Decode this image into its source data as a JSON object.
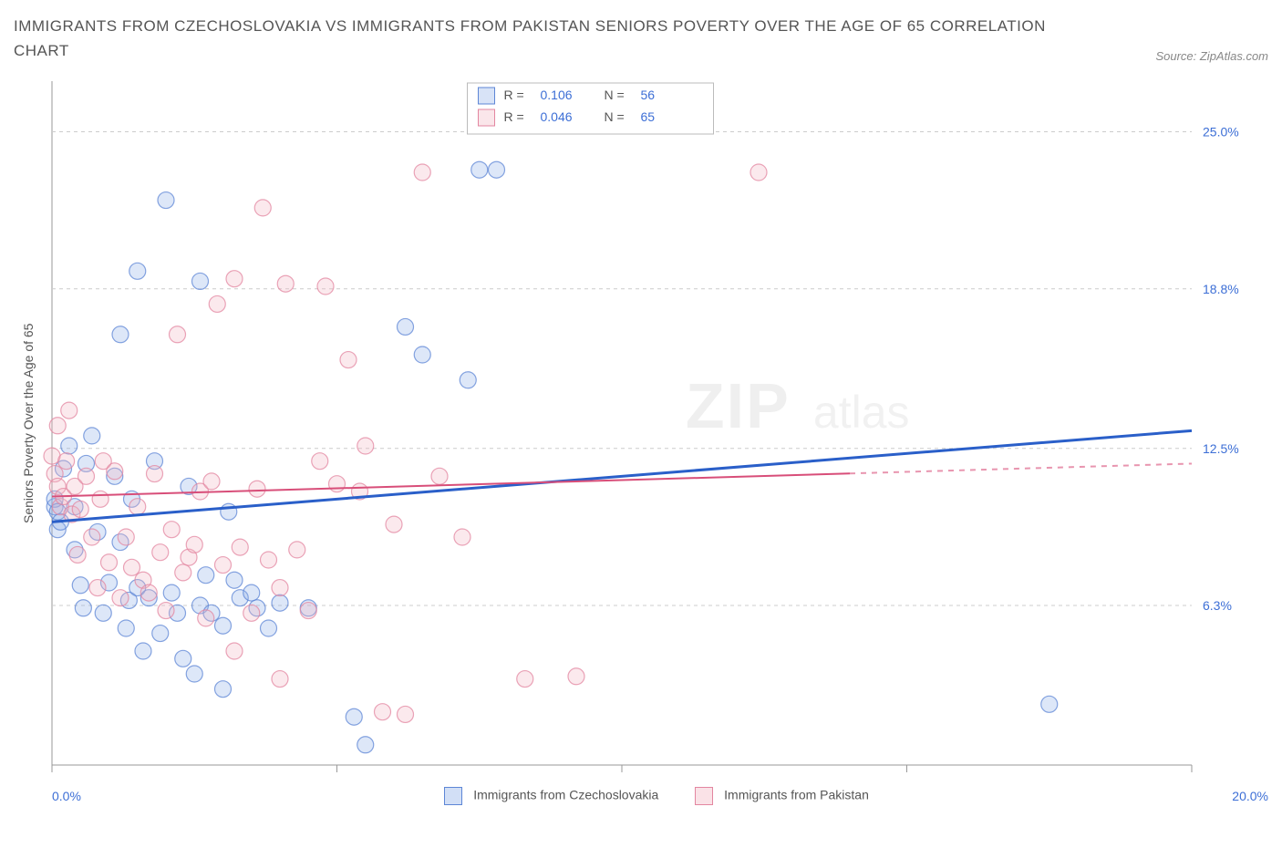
{
  "title": "IMMIGRANTS FROM CZECHOSLOVAKIA VS IMMIGRANTS FROM PAKISTAN SENIORS POVERTY OVER THE AGE OF 65 CORRELATION CHART",
  "source": "Source: ZipAtlas.com",
  "ylabel": "Seniors Poverty Over the Age of 65",
  "watermark_a": "ZIP",
  "watermark_b": "atlas",
  "chart": {
    "type": "scatter",
    "xlim": [
      0,
      20
    ],
    "ylim": [
      0,
      27
    ],
    "xticks": [
      0,
      5,
      10,
      15,
      20
    ],
    "xtick_labels_shown": {
      "first": "0.0%",
      "last": "20.0%"
    },
    "yticks": [
      6.3,
      12.5,
      18.8,
      25.0
    ],
    "ytick_labels": [
      "6.3%",
      "12.5%",
      "18.8%",
      "25.0%"
    ],
    "grid_color": "#cccccc",
    "background": "#ffffff",
    "marker_radius": 9,
    "marker_fill_opacity": 0.3,
    "marker_stroke_opacity": 0.75,
    "series": [
      {
        "name": "Immigrants from Czechoslovakia",
        "color_fill": "#8faee8",
        "color_stroke": "#5d86d6",
        "R": 0.106,
        "N": 56,
        "trend": {
          "x0": 0,
          "y0": 9.6,
          "x1": 20,
          "y1": 13.2,
          "color": "#2a5fc9",
          "width": 3,
          "solid_until": 20
        },
        "points": [
          [
            0.05,
            10.2
          ],
          [
            0.05,
            10.5
          ],
          [
            0.1,
            10.0
          ],
          [
            0.1,
            9.3
          ],
          [
            0.15,
            9.6
          ],
          [
            0.2,
            11.7
          ],
          [
            0.3,
            12.6
          ],
          [
            0.4,
            8.5
          ],
          [
            0.4,
            10.2
          ],
          [
            0.5,
            7.1
          ],
          [
            0.55,
            6.2
          ],
          [
            0.6,
            11.9
          ],
          [
            0.7,
            13.0
          ],
          [
            0.8,
            9.2
          ],
          [
            0.9,
            6.0
          ],
          [
            1.0,
            7.2
          ],
          [
            1.1,
            11.4
          ],
          [
            1.2,
            8.8
          ],
          [
            1.3,
            5.4
          ],
          [
            1.35,
            6.5
          ],
          [
            1.4,
            10.5
          ],
          [
            1.5,
            7.0
          ],
          [
            1.6,
            4.5
          ],
          [
            1.7,
            6.6
          ],
          [
            1.8,
            12.0
          ],
          [
            1.9,
            5.2
          ],
          [
            2.0,
            22.3
          ],
          [
            2.1,
            6.8
          ],
          [
            2.2,
            6.0
          ],
          [
            2.3,
            4.2
          ],
          [
            2.4,
            11.0
          ],
          [
            2.5,
            3.6
          ],
          [
            2.6,
            6.3
          ],
          [
            2.7,
            7.5
          ],
          [
            2.8,
            6.0
          ],
          [
            3.0,
            5.5
          ],
          [
            3.1,
            10.0
          ],
          [
            3.2,
            7.3
          ],
          [
            3.3,
            6.6
          ],
          [
            3.5,
            6.8
          ],
          [
            3.6,
            6.2
          ],
          [
            3.8,
            5.4
          ],
          [
            4.0,
            6.4
          ],
          [
            4.5,
            6.2
          ],
          [
            5.3,
            1.9
          ],
          [
            5.5,
            0.8
          ],
          [
            6.2,
            17.3
          ],
          [
            6.5,
            16.2
          ],
          [
            7.3,
            15.2
          ],
          [
            7.5,
            23.5
          ],
          [
            7.8,
            23.5
          ],
          [
            2.6,
            19.1
          ],
          [
            1.5,
            19.5
          ],
          [
            1.2,
            17.0
          ],
          [
            17.5,
            2.4
          ],
          [
            3.0,
            3.0
          ]
        ]
      },
      {
        "name": "Immigrants from Pakistan",
        "color_fill": "#f2b6c4",
        "color_stroke": "#e386a0",
        "R": 0.046,
        "N": 65,
        "trend": {
          "x0": 0,
          "y0": 10.6,
          "x1": 20,
          "y1": 11.9,
          "color": "#d84e79",
          "width": 2,
          "solid_until": 14,
          "dash_after": true
        },
        "points": [
          [
            0.0,
            12.2
          ],
          [
            0.05,
            11.5
          ],
          [
            0.1,
            11.0
          ],
          [
            0.1,
            13.4
          ],
          [
            0.15,
            10.2
          ],
          [
            0.2,
            10.6
          ],
          [
            0.25,
            12.0
          ],
          [
            0.3,
            14.0
          ],
          [
            0.35,
            9.9
          ],
          [
            0.4,
            11.0
          ],
          [
            0.45,
            8.3
          ],
          [
            0.5,
            10.1
          ],
          [
            0.6,
            11.4
          ],
          [
            0.7,
            9.0
          ],
          [
            0.8,
            7.0
          ],
          [
            0.85,
            10.5
          ],
          [
            0.9,
            12.0
          ],
          [
            1.0,
            8.0
          ],
          [
            1.1,
            11.6
          ],
          [
            1.2,
            6.6
          ],
          [
            1.3,
            9.0
          ],
          [
            1.4,
            7.8
          ],
          [
            1.5,
            10.2
          ],
          [
            1.6,
            7.3
          ],
          [
            1.7,
            6.8
          ],
          [
            1.8,
            11.5
          ],
          [
            1.9,
            8.4
          ],
          [
            2.0,
            6.1
          ],
          [
            2.1,
            9.3
          ],
          [
            2.2,
            17.0
          ],
          [
            2.3,
            7.6
          ],
          [
            2.4,
            8.2
          ],
          [
            2.5,
            8.7
          ],
          [
            2.6,
            10.8
          ],
          [
            2.7,
            5.8
          ],
          [
            2.8,
            11.2
          ],
          [
            2.9,
            18.2
          ],
          [
            3.0,
            7.9
          ],
          [
            3.2,
            19.2
          ],
          [
            3.3,
            8.6
          ],
          [
            3.5,
            6.0
          ],
          [
            3.6,
            10.9
          ],
          [
            3.8,
            8.1
          ],
          [
            4.0,
            7.0
          ],
          [
            4.1,
            19.0
          ],
          [
            4.3,
            8.5
          ],
          [
            4.5,
            6.1
          ],
          [
            4.7,
            12.0
          ],
          [
            4.8,
            18.9
          ],
          [
            5.0,
            11.1
          ],
          [
            5.2,
            16.0
          ],
          [
            5.4,
            10.8
          ],
          [
            5.5,
            12.6
          ],
          [
            5.8,
            2.1
          ],
          [
            6.0,
            9.5
          ],
          [
            6.2,
            2.0
          ],
          [
            6.5,
            23.4
          ],
          [
            6.8,
            11.4
          ],
          [
            7.2,
            9.0
          ],
          [
            3.7,
            22.0
          ],
          [
            8.3,
            3.4
          ],
          [
            9.2,
            3.5
          ],
          [
            12.4,
            23.4
          ],
          [
            4.0,
            3.4
          ],
          [
            3.2,
            4.5
          ]
        ]
      }
    ],
    "legend_box": {
      "labels": [
        "R =",
        "N ="
      ]
    },
    "bottom_legend": {
      "series1": "Immigrants from Czechoslovakia",
      "series2": "Immigrants from Pakistan"
    }
  }
}
